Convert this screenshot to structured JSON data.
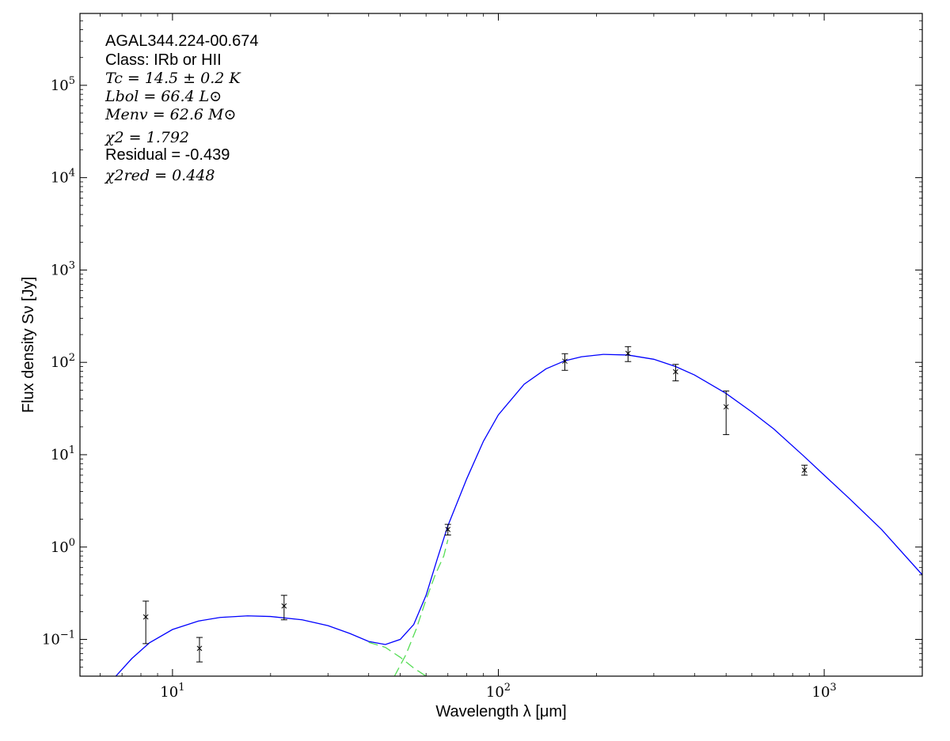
{
  "chart_data": {
    "type": "scatter",
    "title": "",
    "xlabel": "Wavelength λ [μm]",
    "ylabel": "Flux density Sν [Jy]",
    "xscale": "log",
    "yscale": "log",
    "xlim": [
      5.2,
      2000
    ],
    "ylim": [
      0.04,
      600000
    ],
    "grid": false,
    "x_ticks": [
      {
        "value": 10,
        "base": "10",
        "exp": "1"
      },
      {
        "value": 100,
        "base": "10",
        "exp": "2"
      },
      {
        "value": 1000,
        "base": "10",
        "exp": "3"
      }
    ],
    "y_ticks": [
      {
        "value": 0.1,
        "base": "10",
        "exp": "−1"
      },
      {
        "value": 1,
        "base": "10",
        "exp": "0"
      },
      {
        "value": 10,
        "base": "10",
        "exp": "1"
      },
      {
        "value": 100,
        "base": "10",
        "exp": "2"
      },
      {
        "value": 1000,
        "base": "10",
        "exp": "3"
      },
      {
        "value": 10000,
        "base": "10",
        "exp": "4"
      },
      {
        "value": 100000,
        "base": "10",
        "exp": "5"
      }
    ],
    "annotations": [
      "AGAL344.224-00.674",
      "Class: IRb or HII",
      "Tc = 14.5 ± 0.2 K",
      "Lbol = 66.4 L⊙",
      "Menv = 62.6 M⊙",
      "χ2 = 1.792",
      "Residual = -0.439",
      "χ2red = 0.448"
    ],
    "data_points": [
      {
        "x": 8.28,
        "y": 0.175,
        "ylo": 0.09,
        "yhi": 0.26
      },
      {
        "x": 12.1,
        "y": 0.08,
        "ylo": 0.057,
        "yhi": 0.105
      },
      {
        "x": 22.0,
        "y": 0.23,
        "ylo": 0.163,
        "yhi": 0.3
      },
      {
        "x": 70.0,
        "y": 1.55,
        "ylo": 1.35,
        "yhi": 1.76
      },
      {
        "x": 160.0,
        "y": 103,
        "ylo": 82,
        "yhi": 124
      },
      {
        "x": 250.0,
        "y": 125,
        "ylo": 102,
        "yhi": 148
      },
      {
        "x": 350.0,
        "y": 79,
        "ylo": 63,
        "yhi": 95
      },
      {
        "x": 500.0,
        "y": 33,
        "ylo": 16.5,
        "yhi": 49
      },
      {
        "x": 870.0,
        "y": 6.8,
        "ylo": 6.0,
        "yhi": 7.7
      }
    ],
    "series": [
      {
        "style": "solid",
        "color": "#0000ff",
        "points": [
          [
            6.7,
            0.04
          ],
          [
            7.5,
            0.062
          ],
          [
            8.5,
            0.092
          ],
          [
            10,
            0.128
          ],
          [
            12,
            0.158
          ],
          [
            14,
            0.173
          ],
          [
            17,
            0.18
          ],
          [
            20,
            0.177
          ],
          [
            25,
            0.163
          ],
          [
            30,
            0.141
          ],
          [
            35,
            0.116
          ],
          [
            40,
            0.095
          ],
          [
            45,
            0.088
          ],
          [
            50,
            0.1
          ],
          [
            55,
            0.145
          ],
          [
            60,
            0.3
          ],
          [
            65,
            0.75
          ],
          [
            70,
            1.7
          ],
          [
            80,
            5.5
          ],
          [
            90,
            14
          ],
          [
            100,
            27
          ],
          [
            120,
            58
          ],
          [
            140,
            85
          ],
          [
            160,
            104
          ],
          [
            180,
            115
          ],
          [
            210,
            122
          ],
          [
            250,
            120
          ],
          [
            300,
            108
          ],
          [
            350,
            90
          ],
          [
            400,
            73
          ],
          [
            500,
            46
          ],
          [
            600,
            29
          ],
          [
            700,
            19
          ],
          [
            870,
            9.5
          ],
          [
            1000,
            6.0
          ],
          [
            1200,
            3.3
          ],
          [
            1500,
            1.55
          ],
          [
            2000,
            0.5
          ]
        ]
      },
      {
        "style": "dashed",
        "color": "#55dd55",
        "points": [
          [
            40,
            0.093
          ],
          [
            45,
            0.082
          ],
          [
            50,
            0.064
          ],
          [
            55,
            0.049
          ],
          [
            60,
            0.04
          ]
        ]
      },
      {
        "style": "dashed",
        "color": "#55dd55",
        "points": [
          [
            48,
            0.04
          ],
          [
            52,
            0.068
          ],
          [
            56,
            0.13
          ],
          [
            60,
            0.27
          ],
          [
            64,
            0.5
          ],
          [
            68,
            0.8
          ],
          [
            70,
            1.2
          ]
        ]
      }
    ]
  }
}
